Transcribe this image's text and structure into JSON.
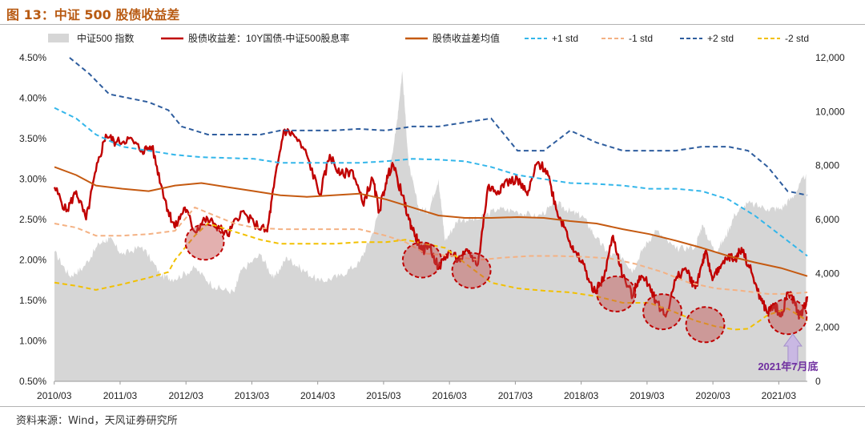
{
  "header": {
    "title": "图 13：中证 500 股债收益差"
  },
  "footer": {
    "source": "资料来源：Wind，天风证券研究所"
  },
  "chart_data": {
    "type": "line",
    "legend": [
      {
        "name": "中证500 指数",
        "type": "area",
        "color": "#d6d6d6"
      },
      {
        "name": "股债收益差：10Y国债-中证500股息率",
        "type": "line",
        "color": "#c00000"
      },
      {
        "name": "股债收益差均值",
        "type": "line",
        "color": "#c55a11"
      },
      {
        "name": "+1 std",
        "type": "dash",
        "color": "#33b6ea"
      },
      {
        "name": "-1 std",
        "type": "dash",
        "color": "#f4b183"
      },
      {
        "name": "+2 std",
        "type": "dash",
        "color": "#2e5d9e"
      },
      {
        "name": "-2 std",
        "type": "dash",
        "color": "#f2c000"
      }
    ],
    "x_ticks": [
      "2010/03",
      "2011/03",
      "2012/03",
      "2013/03",
      "2014/03",
      "2015/03",
      "2016/03",
      "2017/03",
      "2018/03",
      "2019/03",
      "2020/03",
      "2021/03"
    ],
    "y_left_ticks": [
      "0.50%",
      "1.00%",
      "1.50%",
      "2.00%",
      "2.50%",
      "3.00%",
      "3.50%",
      "4.00%",
      "4.50%"
    ],
    "y_right_ticks": [
      "0",
      "2,000",
      "4,000",
      "6,000",
      "8,000",
      "10,000",
      "12,000"
    ],
    "y_left_range": [
      0.5,
      4.5
    ],
    "y_right_range": [
      0,
      12000
    ],
    "x_range": [
      2010.17,
      2021.6
    ],
    "series": [
      {
        "name": "中证500 指数",
        "axis": "right",
        "x": [
          2010.17,
          2010.4,
          2010.6,
          2010.85,
          2011.0,
          2011.2,
          2011.5,
          2011.8,
          2012.0,
          2012.3,
          2012.6,
          2012.9,
          2013.0,
          2013.3,
          2013.5,
          2013.7,
          2013.9,
          2014.2,
          2014.5,
          2014.8,
          2015.0,
          2015.2,
          2015.35,
          2015.45,
          2015.55,
          2015.7,
          2015.85,
          2016.0,
          2016.1,
          2016.3,
          2016.6,
          2016.9,
          2017.2,
          2017.5,
          2017.8,
          2018.0,
          2018.2,
          2018.4,
          2018.6,
          2018.8,
          2018.95,
          2019.1,
          2019.3,
          2019.6,
          2019.9,
          2020.0,
          2020.2,
          2020.35,
          2020.5,
          2020.7,
          2021.0,
          2021.2,
          2021.4,
          2021.58
        ],
        "values": [
          4800,
          3900,
          4200,
          5100,
          5300,
          4700,
          5000,
          3900,
          3800,
          4200,
          3500,
          3300,
          4100,
          4700,
          3800,
          4600,
          4200,
          3700,
          3900,
          4400,
          5500,
          7200,
          9200,
          11500,
          8000,
          6400,
          6300,
          7500,
          5200,
          6000,
          6000,
          6400,
          6300,
          6100,
          6600,
          6300,
          6100,
          5300,
          4700,
          4600,
          4100,
          4900,
          5600,
          4900,
          5000,
          5800,
          4800,
          5300,
          6200,
          6600,
          6400,
          6400,
          6900,
          7700
        ]
      },
      {
        "name": "股债收益差：10Y国债-中证500股息率",
        "axis": "left",
        "x": [
          2010.17,
          2010.35,
          2010.5,
          2010.65,
          2010.8,
          2010.95,
          2011.1,
          2011.3,
          2011.5,
          2011.65,
          2011.8,
          2011.9,
          2012.0,
          2012.15,
          2012.3,
          2012.45,
          2012.6,
          2012.8,
          2013.0,
          2013.2,
          2013.4,
          2013.5,
          2013.65,
          2013.8,
          2014.0,
          2014.2,
          2014.35,
          2014.5,
          2014.7,
          2014.85,
          2015.0,
          2015.1,
          2015.2,
          2015.3,
          2015.45,
          2015.55,
          2015.65,
          2015.75,
          2015.85,
          2016.0,
          2016.15,
          2016.3,
          2016.45,
          2016.6,
          2016.75,
          2016.9,
          2017.0,
          2017.2,
          2017.35,
          2017.5,
          2017.65,
          2017.8,
          2017.95,
          2018.05,
          2018.2,
          2018.35,
          2018.5,
          2018.65,
          2018.8,
          2018.95,
          2019.05,
          2019.2,
          2019.3,
          2019.45,
          2019.6,
          2019.75,
          2019.9,
          2020.0,
          2020.05,
          2020.15,
          2020.25,
          2020.4,
          2020.5,
          2020.6,
          2020.75,
          2020.9,
          2021.0,
          2021.1,
          2021.2,
          2021.3,
          2021.4,
          2021.48,
          2021.55,
          2021.6
        ],
        "values": [
          2.9,
          2.6,
          2.85,
          2.5,
          3.1,
          3.55,
          3.45,
          3.5,
          3.35,
          3.4,
          2.9,
          2.6,
          2.4,
          2.65,
          2.35,
          2.5,
          2.45,
          2.3,
          2.6,
          2.45,
          2.35,
          2.9,
          3.6,
          3.55,
          3.3,
          2.8,
          3.3,
          3.05,
          3.1,
          2.7,
          3.0,
          2.6,
          2.95,
          3.2,
          2.8,
          2.5,
          2.3,
          2.1,
          2.2,
          1.9,
          2.1,
          2.0,
          2.1,
          1.95,
          2.9,
          2.85,
          2.95,
          3.0,
          2.8,
          3.2,
          3.1,
          2.6,
          2.35,
          2.1,
          1.95,
          1.6,
          1.75,
          2.3,
          1.8,
          1.55,
          1.8,
          1.7,
          1.5,
          1.3,
          1.75,
          1.9,
          1.65,
          1.95,
          2.1,
          1.8,
          1.85,
          2.05,
          2.0,
          2.15,
          1.85,
          1.5,
          1.35,
          1.45,
          1.3,
          1.6,
          1.5,
          1.3,
          1.4,
          1.55
        ]
      },
      {
        "name": "股债收益差均值",
        "axis": "left",
        "x": [
          2010.17,
          2010.5,
          2010.8,
          2011.2,
          2011.6,
          2012.0,
          2012.4,
          2012.8,
          2013.2,
          2013.6,
          2014.0,
          2014.4,
          2014.8,
          2015.2,
          2015.6,
          2016.0,
          2016.4,
          2016.8,
          2017.2,
          2017.6,
          2018.0,
          2018.4,
          2018.8,
          2019.2,
          2019.6,
          2020.0,
          2020.4,
          2020.8,
          2021.2,
          2021.6
        ],
        "values": [
          3.15,
          3.05,
          2.92,
          2.88,
          2.85,
          2.92,
          2.95,
          2.9,
          2.85,
          2.8,
          2.78,
          2.8,
          2.82,
          2.75,
          2.65,
          2.55,
          2.52,
          2.52,
          2.53,
          2.52,
          2.48,
          2.45,
          2.38,
          2.32,
          2.24,
          2.15,
          2.05,
          1.97,
          1.9,
          1.8
        ]
      },
      {
        "name": "+1 std",
        "axis": "left",
        "x": [
          2010.17,
          2010.5,
          2010.8,
          2011.2,
          2011.6,
          2012.0,
          2012.4,
          2012.8,
          2013.2,
          2013.6,
          2014.0,
          2014.4,
          2014.8,
          2015.2,
          2015.6,
          2016.0,
          2016.4,
          2016.8,
          2017.2,
          2017.6,
          2018.0,
          2018.4,
          2018.8,
          2019.2,
          2019.6,
          2020.0,
          2020.4,
          2020.8,
          2021.2,
          2021.6
        ],
        "values": [
          3.88,
          3.75,
          3.55,
          3.4,
          3.35,
          3.3,
          3.27,
          3.26,
          3.25,
          3.2,
          3.2,
          3.2,
          3.2,
          3.22,
          3.25,
          3.24,
          3.22,
          3.15,
          3.05,
          3.0,
          2.95,
          2.94,
          2.92,
          2.88,
          2.88,
          2.85,
          2.75,
          2.55,
          2.3,
          2.05
        ]
      },
      {
        "name": "-1 std",
        "axis": "left",
        "x": [
          2010.17,
          2010.5,
          2010.8,
          2011.2,
          2011.6,
          2012.0,
          2012.3,
          2012.6,
          2012.9,
          2013.2,
          2013.6,
          2014.0,
          2014.4,
          2014.8,
          2015.2,
          2015.5,
          2015.8,
          2016.2,
          2016.6,
          2017.0,
          2017.4,
          2017.8,
          2018.2,
          2018.6,
          2019.0,
          2019.4,
          2019.8,
          2020.2,
          2020.6,
          2021.0,
          2021.3,
          2021.6
        ],
        "values": [
          2.45,
          2.4,
          2.3,
          2.3,
          2.32,
          2.36,
          2.65,
          2.55,
          2.45,
          2.4,
          2.38,
          2.38,
          2.38,
          2.38,
          2.3,
          2.22,
          2.08,
          2.05,
          2.0,
          2.03,
          2.05,
          2.05,
          2.04,
          2.02,
          1.95,
          1.85,
          1.72,
          1.65,
          1.62,
          1.58,
          1.58,
          1.6
        ]
      },
      {
        "name": "+2 std",
        "axis": "left",
        "x": [
          2010.4,
          2010.7,
          2011.0,
          2011.3,
          2011.6,
          2011.9,
          2012.1,
          2012.5,
          2012.9,
          2013.3,
          2013.6,
          2014.0,
          2014.4,
          2014.8,
          2015.2,
          2015.6,
          2016.0,
          2016.4,
          2016.8,
          2017.2,
          2017.6,
          2018.0,
          2018.4,
          2018.8,
          2019.2,
          2019.6,
          2020.0,
          2020.4,
          2020.7,
          2021.0,
          2021.3,
          2021.6
        ],
        "values": [
          4.5,
          4.3,
          4.05,
          4.0,
          3.95,
          3.85,
          3.65,
          3.55,
          3.55,
          3.55,
          3.6,
          3.6,
          3.6,
          3.62,
          3.6,
          3.65,
          3.65,
          3.7,
          3.75,
          3.35,
          3.35,
          3.6,
          3.45,
          3.35,
          3.35,
          3.35,
          3.4,
          3.4,
          3.35,
          3.15,
          2.85,
          2.8
        ]
      },
      {
        "name": "-2 std",
        "axis": "left",
        "x": [
          2010.17,
          2010.5,
          2010.8,
          2011.2,
          2011.6,
          2011.9,
          2012.0,
          2012.3,
          2012.5,
          2012.9,
          2013.3,
          2013.6,
          2014.0,
          2014.4,
          2014.8,
          2015.2,
          2015.5,
          2015.8,
          2016.1,
          2016.5,
          2016.8,
          2017.2,
          2017.6,
          2018.0,
          2018.4,
          2018.8,
          2019.2,
          2019.6,
          2019.9,
          2020.2,
          2020.5,
          2020.7,
          2021.0,
          2021.3,
          2021.6
        ],
        "values": [
          1.72,
          1.68,
          1.63,
          1.7,
          1.78,
          1.85,
          2.0,
          2.3,
          2.45,
          2.35,
          2.25,
          2.2,
          2.2,
          2.2,
          2.22,
          2.22,
          2.25,
          2.2,
          2.15,
          1.9,
          1.72,
          1.65,
          1.62,
          1.6,
          1.55,
          1.47,
          1.47,
          1.35,
          1.25,
          1.18,
          1.14,
          1.15,
          1.32,
          1.4,
          1.25
        ]
      }
    ],
    "highlights": [
      {
        "x": 2012.45,
        "y": 2.22
      },
      {
        "x": 2015.75,
        "y": 2.0
      },
      {
        "x": 2016.5,
        "y": 1.87
      },
      {
        "x": 2018.7,
        "y": 1.58
      },
      {
        "x": 2019.4,
        "y": 1.36
      },
      {
        "x": 2020.05,
        "y": 1.2
      },
      {
        "x": 2021.3,
        "y": 1.3
      }
    ],
    "annotation": {
      "text": "2021年7月底",
      "x": 2021.38,
      "color": "#7030a0"
    }
  }
}
